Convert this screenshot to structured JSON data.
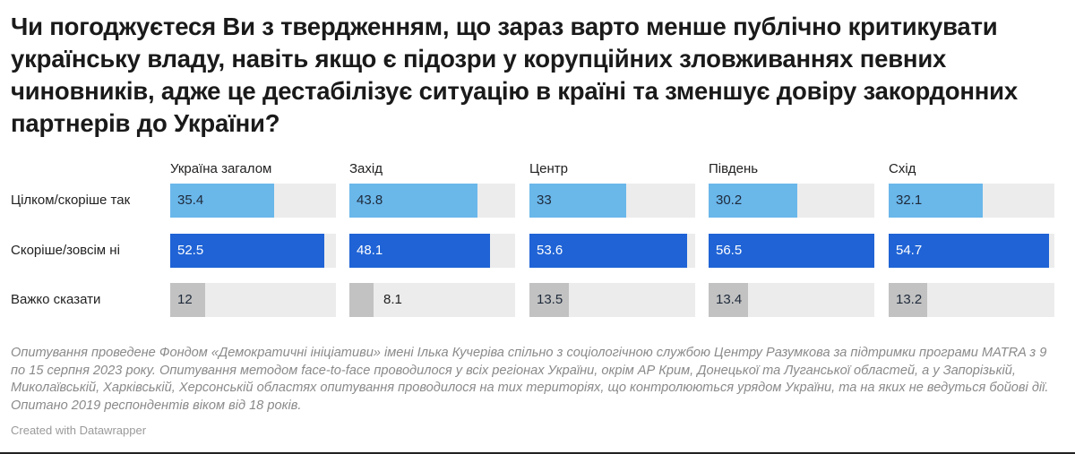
{
  "title": "Чи погоджуєтеся Ви з твердженням, що зараз варто менше публічно критикувати українську владу, навіть якщо є підозри у корупційних зловживаннях певних чиновників, адже це дестабілізує ситуацію в країні та зменшує довіру закордонних партнерів до України?",
  "note": "Опитування проведене Фондом «Демократичні ініціативи» імені Ілька Кучеріва спільно з соціологічною службою Центру Разумкова за підтримки програми MATRA з 9 по 15 серпня 2023 року. Опитування методом face-to-face проводилося у всіх регіонах України, окрім АР Крим, Донецької та Луганської областей, а у Запорізькій, Миколаївській, Харківській, Херсонській областях опитування проводилося на тих територіях, що контролюються урядом України, та на яких не ведуться бойові дії. Опитано 2019 респондентів віком від 18 років.",
  "credit": "Created with Datawrapper",
  "chart_data": {
    "type": "bar",
    "categories": [
      "Україна загалом",
      "Захід",
      "Центр",
      "Південь",
      "Схід"
    ],
    "rows": [
      "Цілком/скоріше так",
      "Скоріше/зовсім ні",
      "Важко сказати"
    ],
    "series": [
      {
        "name": "Цілком/скоріше так",
        "values": [
          35.4,
          43.8,
          33,
          30.2,
          32.1
        ],
        "labels": [
          "35.4",
          "43.8",
          "33",
          "30.2",
          "32.1"
        ],
        "color": "#6ab7ea"
      },
      {
        "name": "Скоріше/зовсім ні",
        "values": [
          52.5,
          48.1,
          53.6,
          56.5,
          54.7
        ],
        "labels": [
          "52.5",
          "48.1",
          "53.6",
          "56.5",
          "54.7"
        ],
        "color": "#1f63d6"
      },
      {
        "name": "Важко сказати",
        "values": [
          12,
          8.1,
          13.5,
          13.4,
          13.2
        ],
        "labels": [
          "12",
          "8.1",
          "13.5",
          "13.4",
          "13.2"
        ],
        "color": "#c2c2c2"
      }
    ],
    "xlim": [
      0,
      56.5
    ],
    "track_color": "#ececec"
  }
}
